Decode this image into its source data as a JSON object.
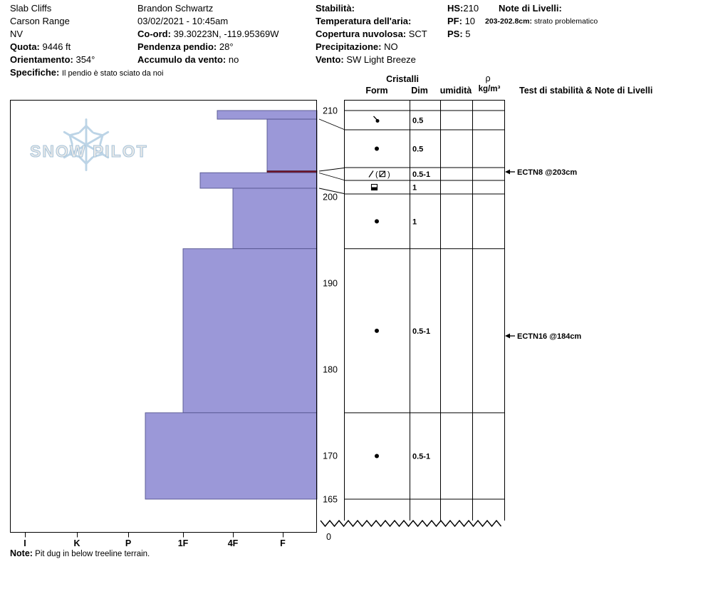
{
  "header": {
    "location": {
      "name": "Slab Cliffs",
      "range": "Carson Range",
      "state": "NV"
    },
    "quota": {
      "label": "Quota:",
      "value": "9446 ft"
    },
    "orientamento": {
      "label": "Orientamento:",
      "value": "354°"
    },
    "specifiche": {
      "label": "Specifiche:",
      "value": "Il pendio è stato sciato da noi"
    },
    "observer": "Brandon Schwartz",
    "datetime": "03/02/2021 - 10:45am",
    "coord": {
      "label": "Co-ord:",
      "value": "39.30223N, -119.95369W"
    },
    "pendenza": {
      "label": "Pendenza pendio:",
      "value": "28°"
    },
    "accumulo": {
      "label": "Accumulo da vento:",
      "value": "no"
    },
    "stabilita": {
      "label": "Stabilità:",
      "value": ""
    },
    "temperatura": {
      "label": "Temperatura dell'aria:",
      "value": ""
    },
    "copertura": {
      "label": "Copertura nuvolosa:",
      "value": "SCT"
    },
    "precipitazione": {
      "label": "Precipitazione:",
      "value": "NO"
    },
    "vento": {
      "label": "Vento:",
      "value": "SW Light Breeze"
    },
    "hs": {
      "label": "HS:",
      "value": "210"
    },
    "pf": {
      "label": "PF:",
      "value": "10"
    },
    "ps": {
      "label": "PS:",
      "value": "5"
    },
    "note_livelli": {
      "label": "Note di Livelli:",
      "entry_label": "203-202.8cm:",
      "entry_text": "strato problematico"
    }
  },
  "columns": {
    "cristalli": "Cristalli",
    "form": "Form",
    "dim": "Dim",
    "umidita": "umidità",
    "rho": "ρ",
    "rho_unit": "kg/m³",
    "tests": "Test di stabilità & Note di Livelli"
  },
  "watermark": {
    "text": "SNOW PILOT"
  },
  "footer": {
    "label": "Note:",
    "text": "Pit dug in below treeline terrain."
  },
  "chart_data": {
    "type": "bar",
    "depth_axis": {
      "unit": "cm",
      "ticks": [
        210,
        200,
        190,
        180,
        170,
        165,
        0
      ],
      "surface_cm": 210,
      "pit_bottom_cm": 165
    },
    "hardness_axis": {
      "categories": [
        "I",
        "K",
        "P",
        "1F",
        "4F",
        "F"
      ]
    },
    "layers": [
      {
        "top_cm": 210,
        "bottom_cm": 209,
        "hardness": "4F+",
        "form": "decomposing-fragments",
        "symbol": "dot-slash",
        "dim_mm": "0.5"
      },
      {
        "top_cm": 209,
        "bottom_cm": 203,
        "hardness": "F+",
        "form": "rounded-grains",
        "symbol": "dot",
        "dim_mm": "0.5"
      },
      {
        "top_cm": 203,
        "bottom_cm": 202.8,
        "hardness": "F+",
        "form": "faceted-mixed",
        "symbol": "slash-paren-box",
        "dim_mm": "0.5-1",
        "problem_layer": true
      },
      {
        "top_cm": 202.8,
        "bottom_cm": 201,
        "hardness": "1F-",
        "form": "crust",
        "symbol": "square-half",
        "dim_mm": "1"
      },
      {
        "top_cm": 201,
        "bottom_cm": 194,
        "hardness": "4F",
        "form": "rounded-grains",
        "symbol": "dot",
        "dim_mm": "1"
      },
      {
        "top_cm": 194,
        "bottom_cm": 175,
        "hardness": "1F",
        "form": "rounded-grains",
        "symbol": "dot",
        "dim_mm": "0.5-1"
      },
      {
        "top_cm": 175,
        "bottom_cm": 165,
        "hardness": "P-",
        "form": "rounded-grains",
        "symbol": "dot",
        "dim_mm": "0.5-1"
      }
    ],
    "stability_tests": [
      {
        "label": "ECTN8 @203cm",
        "depth_cm": 203
      },
      {
        "label": "ECTN16 @184cm",
        "depth_cm": 184
      }
    ],
    "colors": {
      "layer_fill": "#9b98d8",
      "layer_border": "#55558f",
      "problem_layer": "#7d1228"
    }
  }
}
